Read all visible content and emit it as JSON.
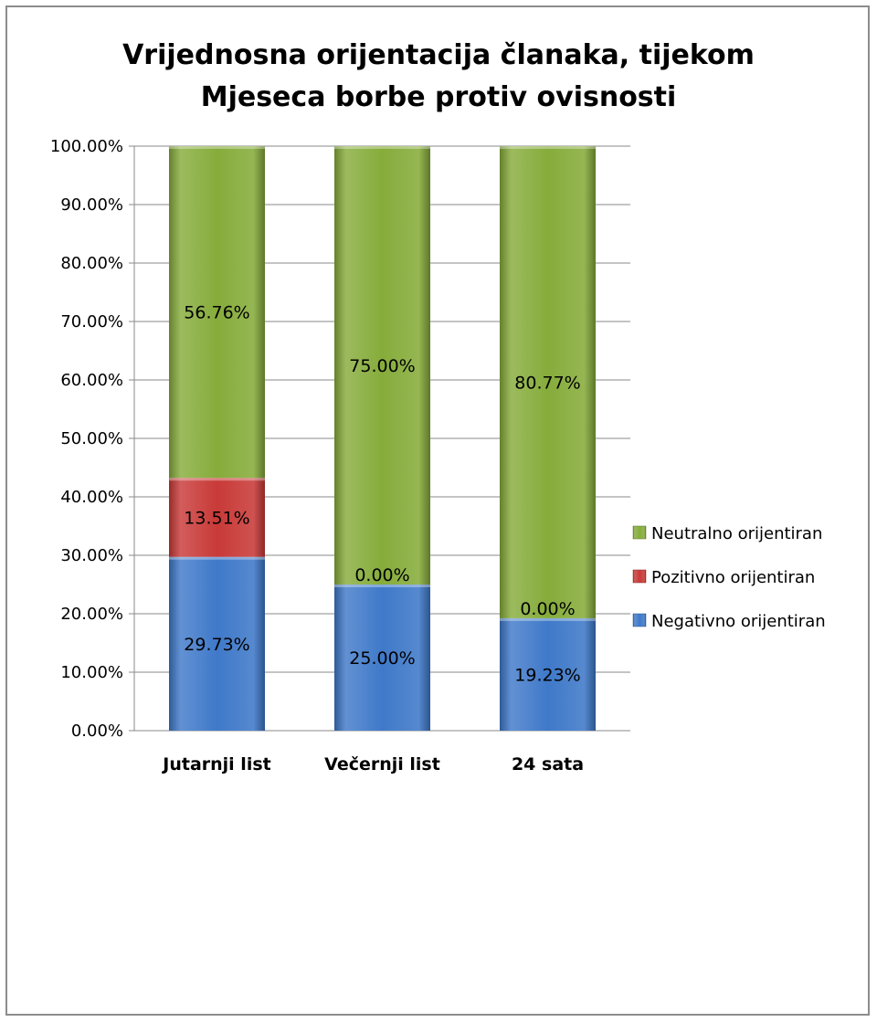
{
  "chart_data": {
    "type": "bar",
    "stacked": true,
    "title_lines": [
      "Vrijednosna orijentacija članaka, tijekom",
      "Mjeseca borbe protiv ovisnosti"
    ],
    "categories": [
      "Jutarnji list",
      "Večernji list",
      "24 sata"
    ],
    "series": [
      {
        "name": "Negativno orijentiran",
        "values": [
          29.73,
          25.0,
          19.23
        ],
        "labels": [
          "29.73%",
          "25.00%",
          "19.23%"
        ],
        "color": "#3f79c9"
      },
      {
        "name": "Pozitivno orijentiran",
        "values": [
          13.51,
          0.0,
          0.0
        ],
        "labels": [
          "13.51%",
          "0.00%",
          "0.00%"
        ],
        "color": "#c83a38"
      },
      {
        "name": "Neutralno orijentiran",
        "values": [
          56.76,
          75.0,
          80.77
        ],
        "labels": [
          "56.76%",
          "75.00%",
          "80.77%"
        ],
        "color": "#86ac3b"
      }
    ],
    "ylim": [
      0,
      100
    ],
    "yticks": [
      0,
      10,
      20,
      30,
      40,
      50,
      60,
      70,
      80,
      90,
      100
    ],
    "ytick_labels": [
      "0.00%",
      "10.00%",
      "20.00%",
      "30.00%",
      "40.00%",
      "50.00%",
      "60.00%",
      "70.00%",
      "80.00%",
      "90.00%",
      "100.00%"
    ],
    "grid": true,
    "legend_position": "right",
    "legend_order": [
      "Neutralno orijentiran",
      "Pozitivno orijentiran",
      "Negativno orijentiran"
    ]
  }
}
